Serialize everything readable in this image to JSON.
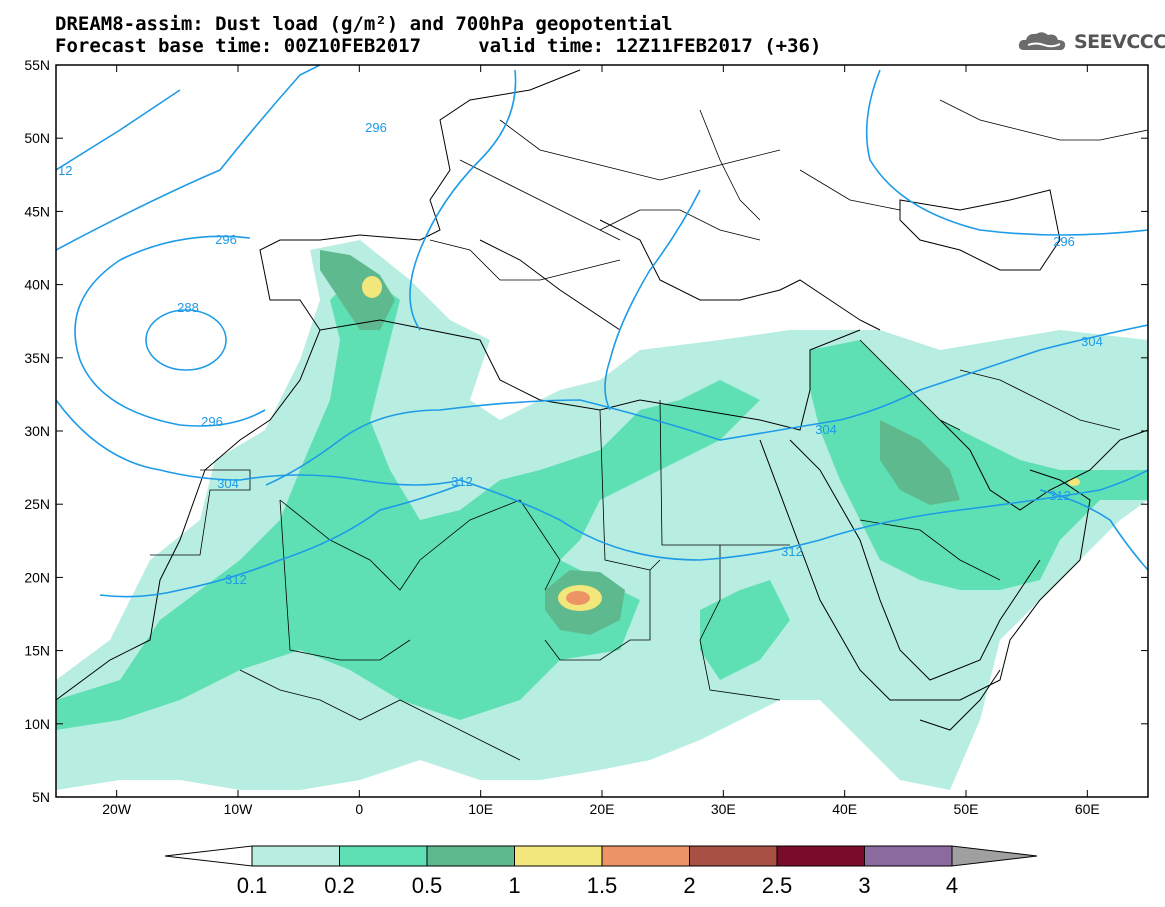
{
  "title": {
    "line1": "DREAM8-assim: Dust load (g/m²) and 700hPa geopotential",
    "line2": "Forecast base time: 00Z10FEB2017     valid time: 12Z11FEB2017 (+36)"
  },
  "logo": {
    "text": "SEEVCCC",
    "icon": "cloud-icon"
  },
  "map": {
    "lat_labels": [
      "55N",
      "50N",
      "45N",
      "40N",
      "35N",
      "30N",
      "25N",
      "20N",
      "15N",
      "10N",
      "5N"
    ],
    "lon_labels": [
      "20W",
      "10W",
      "0",
      "10E",
      "20E",
      "30E",
      "40E",
      "50E",
      "60E"
    ],
    "contour_labels": [
      "296",
      "312",
      "296",
      "288",
      "296",
      "304",
      "312",
      "304",
      "304",
      "312",
      "296",
      "312"
    ]
  },
  "colorbar": {
    "labels": [
      "0.1",
      "0.2",
      "0.5",
      "1",
      "1.5",
      "2",
      "2.5",
      "3",
      "4"
    ],
    "colors": [
      "#b7eee1",
      "#5fe0b4",
      "#5fb98f",
      "#f2e77a",
      "#ec9466",
      "#a85043",
      "#780c2a",
      "#8b6aa0",
      "#a0a0a0"
    ]
  }
}
